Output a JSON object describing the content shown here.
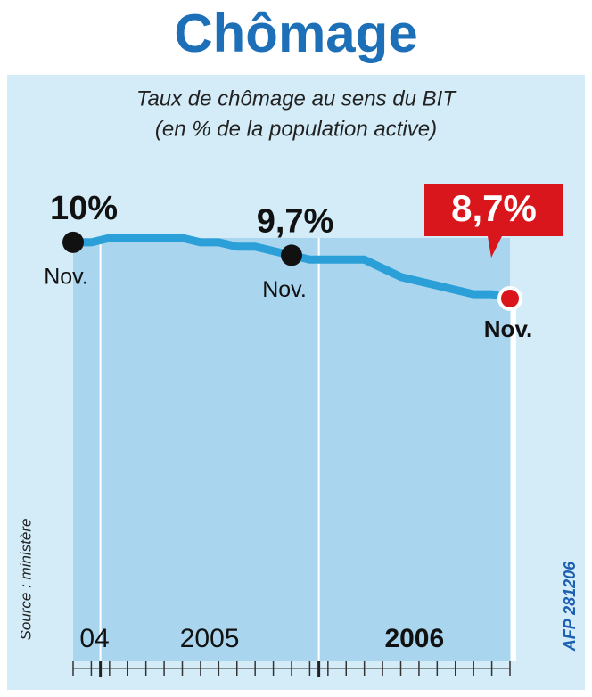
{
  "chart_data": {
    "type": "line",
    "title": "Chômage",
    "subtitle": [
      "Taux de chômage au sens du BIT",
      "(en % de la population active)"
    ],
    "categories": [
      "Nov.",
      null,
      null,
      null,
      null,
      null,
      null,
      null,
      null,
      null,
      null,
      null,
      "Nov.",
      null,
      null,
      null,
      null,
      null,
      null,
      null,
      null,
      null,
      null,
      null,
      "Nov."
    ],
    "periods": [
      "04",
      "2005",
      "2006"
    ],
    "series": [
      {
        "color": "#2b9fd8",
        "values": [
          10,
          10.0,
          10.1,
          10.1,
          10.1,
          10.1,
          10.1,
          10.0,
          10.0,
          9.9,
          9.9,
          9.8,
          9.7,
          9.6,
          9.6,
          9.6,
          9.6,
          9.4,
          9.2,
          9.1,
          9.0,
          8.9,
          8.8,
          8.8,
          8.7
        ],
        "value_labels": [
          "10%",
          null,
          null,
          null,
          null,
          null,
          null,
          null,
          null,
          null,
          null,
          null,
          "9,7%",
          null,
          null,
          null,
          null,
          null,
          null,
          null,
          null,
          null,
          null,
          null,
          "8,7%"
        ]
      }
    ],
    "highlight_color": "#d8161b",
    "source": "Source : ministère",
    "credit": "AFP 281206"
  }
}
